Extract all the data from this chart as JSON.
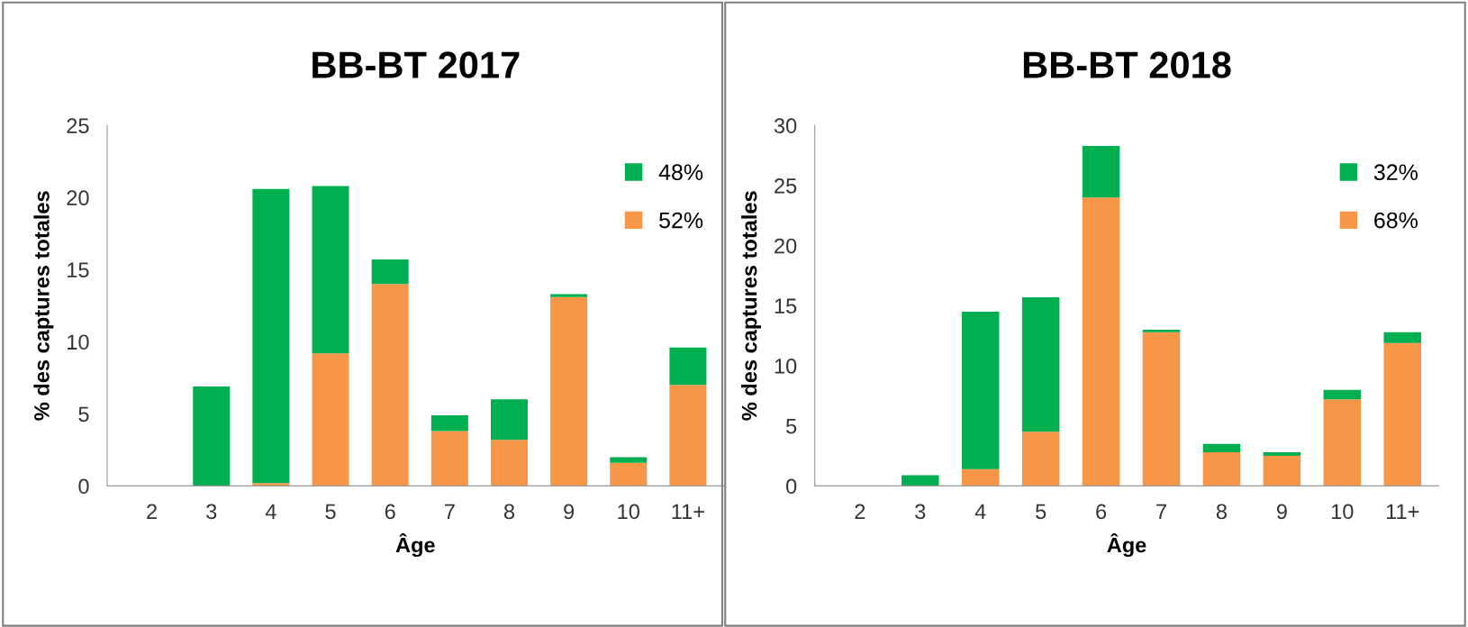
{
  "chart_data": [
    {
      "type": "bar",
      "title": "BB-BT 2017",
      "xlabel": "Âge",
      "ylabel": "% des captures totales",
      "stacked": true,
      "categories": [
        "2",
        "3",
        "4",
        "5",
        "6",
        "7",
        "8",
        "9",
        "10",
        "11+"
      ],
      "series": [
        {
          "name": "52%",
          "color": "#f79646",
          "values": [
            0,
            0,
            0.2,
            9.2,
            14.0,
            3.8,
            3.2,
            13.1,
            1.6,
            7.0
          ]
        },
        {
          "name": "48%",
          "color": "#00b050",
          "values": [
            0,
            6.9,
            20.4,
            11.6,
            1.7,
            1.1,
            2.8,
            0.2,
            0.4,
            2.6
          ]
        }
      ],
      "ylim": [
        0,
        25
      ],
      "yticks": [
        0,
        5,
        10,
        15,
        20,
        25
      ],
      "grid": false,
      "legend": "top right"
    },
    {
      "type": "bar",
      "title": "BB-BT 2018",
      "xlabel": "Âge",
      "ylabel": "% des captures totales",
      "stacked": true,
      "categories": [
        "2",
        "3",
        "4",
        "5",
        "6",
        "7",
        "8",
        "9",
        "10",
        "11+"
      ],
      "series": [
        {
          "name": "68%",
          "color": "#f79646",
          "values": [
            0,
            0,
            1.4,
            4.5,
            24.0,
            12.8,
            2.8,
            2.5,
            7.2,
            11.9
          ]
        },
        {
          "name": "32%",
          "color": "#00b050",
          "values": [
            0,
            0.9,
            13.1,
            11.2,
            4.3,
            0.2,
            0.7,
            0.3,
            0.8,
            0.9
          ]
        }
      ],
      "ylim": [
        0,
        30
      ],
      "yticks": [
        0,
        5,
        10,
        15,
        20,
        25,
        30
      ],
      "grid": false,
      "legend": "top right"
    }
  ]
}
